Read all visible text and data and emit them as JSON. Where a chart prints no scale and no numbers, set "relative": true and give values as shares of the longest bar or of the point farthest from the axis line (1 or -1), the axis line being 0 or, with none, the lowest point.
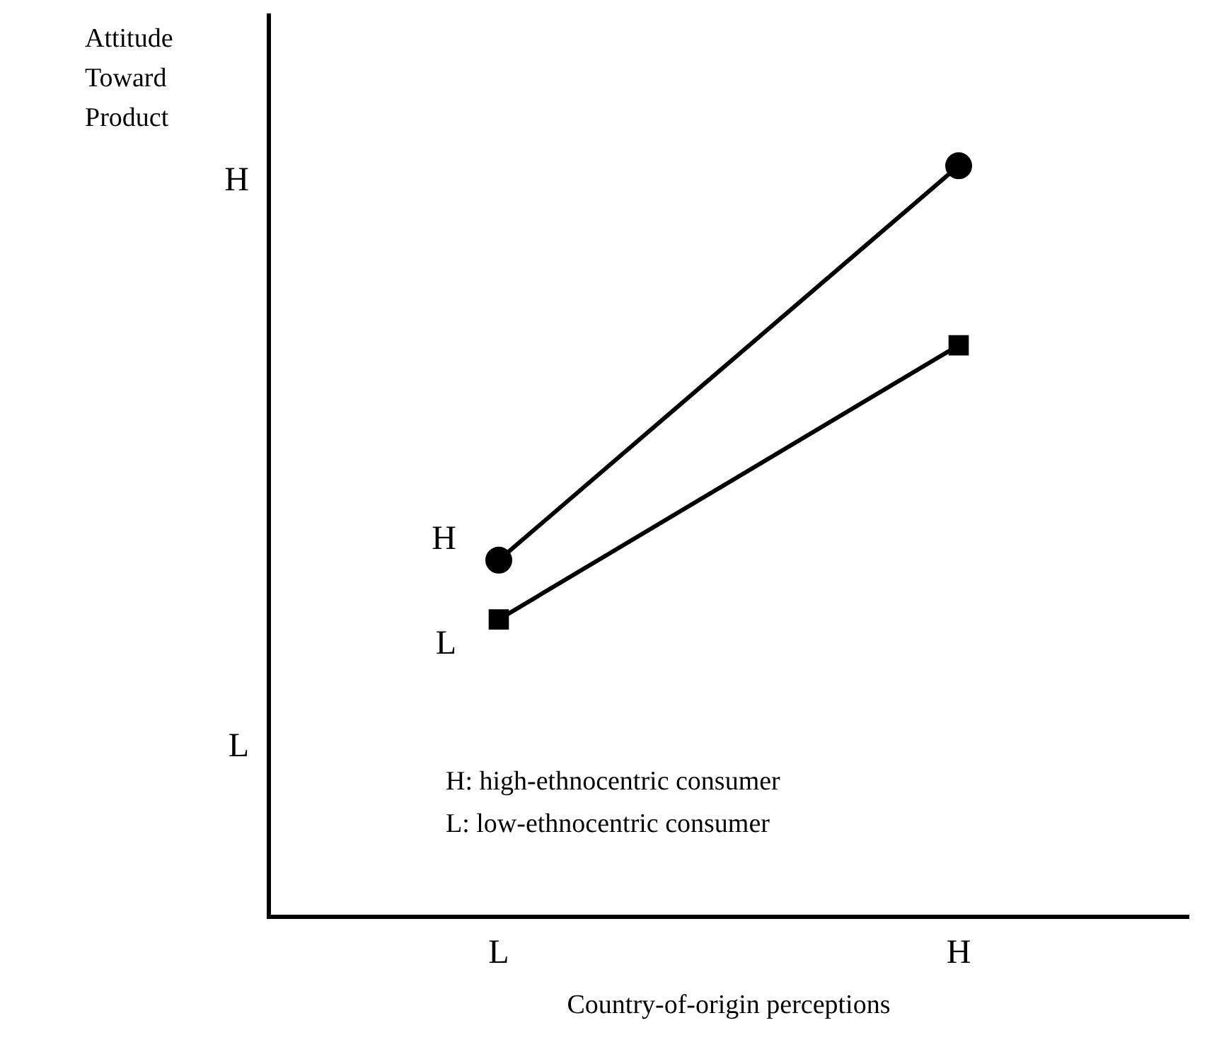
{
  "chart_data": {
    "type": "line",
    "relative": true,
    "ylabel": "Attitude Toward Product",
    "xlabel": "Country-of-origin perceptions",
    "categories": [
      "L",
      "H"
    ],
    "grid": false,
    "legend": false,
    "line_style": "solid",
    "series": [
      {
        "name": "H",
        "color": "#000000",
        "marker": "circle",
        "values": [
          0.475,
          1
        ]
      },
      {
        "name": "L",
        "color": "#000000",
        "marker": "square",
        "values": [
          0.396,
          0.761
        ]
      }
    ],
    "annotations": [
      "H",
      "L",
      "H: high-ethnocentric consumer",
      "L: low-ethnocentric consumer"
    ]
  }
}
